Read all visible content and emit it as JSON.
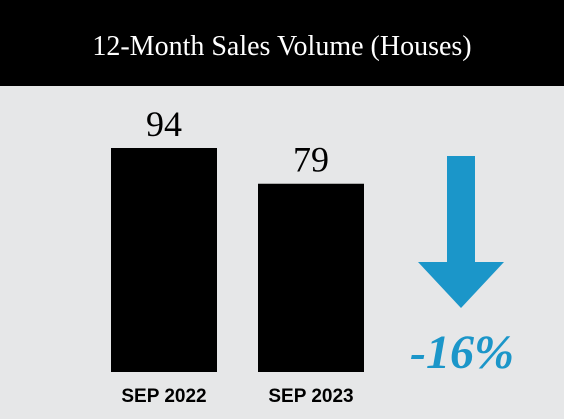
{
  "chart_data": {
    "type": "bar",
    "title": "12-Month Sales Volume (Houses)",
    "categories": [
      "SEP 2022",
      "SEP 2023"
    ],
    "values": [
      94,
      79
    ],
    "color": "#000000",
    "annotation": "-16%",
    "annotation_color": "#1b96c9"
  }
}
